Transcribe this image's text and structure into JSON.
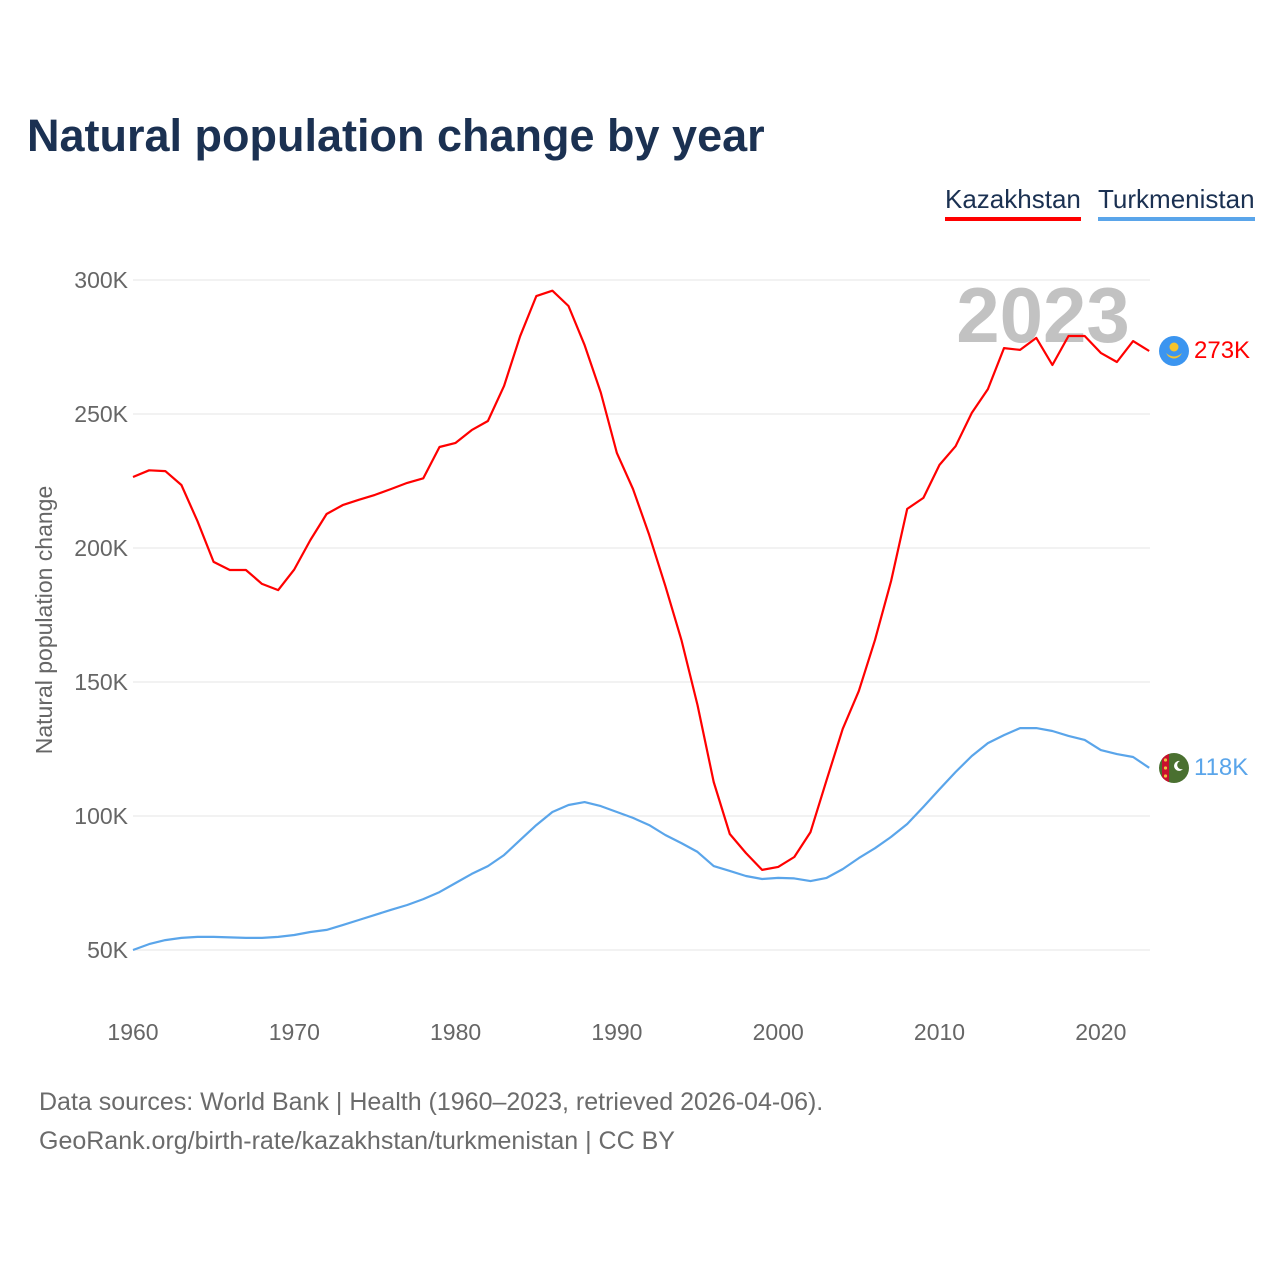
{
  "chart_data": {
    "type": "line",
    "title": "Natural population change by year",
    "xlabel": "",
    "ylabel": "Natural population change",
    "xlim": [
      1960,
      2023
    ],
    "ylim": [
      30000,
      310000
    ],
    "x_ticks": [
      1960,
      1970,
      1980,
      1990,
      2000,
      2010,
      2020
    ],
    "y_ticks": [
      50000,
      100000,
      150000,
      200000,
      250000,
      300000
    ],
    "y_tick_labels": [
      "50K",
      "100K",
      "150K",
      "200K",
      "250K",
      "300K"
    ],
    "grid": true,
    "legend_position": "top-right",
    "year_label": "2023",
    "x": [
      1960,
      1961,
      1962,
      1963,
      1964,
      1965,
      1966,
      1967,
      1968,
      1969,
      1970,
      1971,
      1972,
      1973,
      1974,
      1975,
      1976,
      1977,
      1978,
      1979,
      1980,
      1981,
      1982,
      1983,
      1984,
      1985,
      1986,
      1987,
      1988,
      1989,
      1990,
      1991,
      1992,
      1993,
      1994,
      1995,
      1996,
      1997,
      1998,
      1999,
      2000,
      2001,
      2002,
      2003,
      2004,
      2005,
      2006,
      2007,
      2008,
      2009,
      2010,
      2011,
      2012,
      2013,
      2014,
      2015,
      2016,
      2017,
      2018,
      2019,
      2020,
      2021,
      2022,
      2023
    ],
    "series": [
      {
        "name": "Kazakhstan",
        "color": "#ff0000",
        "end_label": "273K",
        "values": [
          226500,
          229000,
          228700,
          223500,
          210000,
          194800,
          191800,
          191800,
          186600,
          184300,
          192000,
          203000,
          212700,
          216000,
          218000,
          219800,
          222000,
          224300,
          226000,
          237700,
          239200,
          244000,
          247400,
          260400,
          279000,
          294000,
          296000,
          290300,
          275700,
          258000,
          235400,
          222000,
          204900,
          185900,
          165700,
          141400,
          112700,
          93300,
          86200,
          79900,
          81000,
          84700,
          94000,
          113400,
          132500,
          146600,
          165700,
          187700,
          214600,
          218700,
          231000,
          238000,
          250400,
          259300,
          274600,
          273900,
          278400,
          268300,
          279100,
          279100,
          272800,
          269400,
          277200,
          273500
        ]
      },
      {
        "name": "Turkmenistan",
        "color": "#5aa5ea",
        "end_label": "118K",
        "values": [
          50000,
          52200,
          53700,
          54500,
          54900,
          54900,
          54700,
          54500,
          54500,
          54900,
          55600,
          56700,
          57500,
          59300,
          61200,
          63100,
          65000,
          66800,
          69000,
          71600,
          75000,
          78400,
          81300,
          85400,
          91000,
          96600,
          101500,
          104100,
          105200,
          103700,
          101500,
          99300,
          96600,
          92900,
          89900,
          86600,
          81300,
          79500,
          77600,
          76500,
          76900,
          76700,
          75700,
          76900,
          80200,
          84300,
          88000,
          92200,
          97000,
          103400,
          110000,
          116400,
          122400,
          127200,
          130200,
          132800,
          132800,
          131700,
          129900,
          128400,
          124600,
          123100,
          122000,
          118000
        ]
      }
    ]
  },
  "footer": {
    "line1": "Data sources: World Bank | Health (1960–2023, retrieved 2026-04-06).",
    "line2": "GeoRank.org/birth-rate/kazakhstan/turkmenistan | CC BY"
  }
}
